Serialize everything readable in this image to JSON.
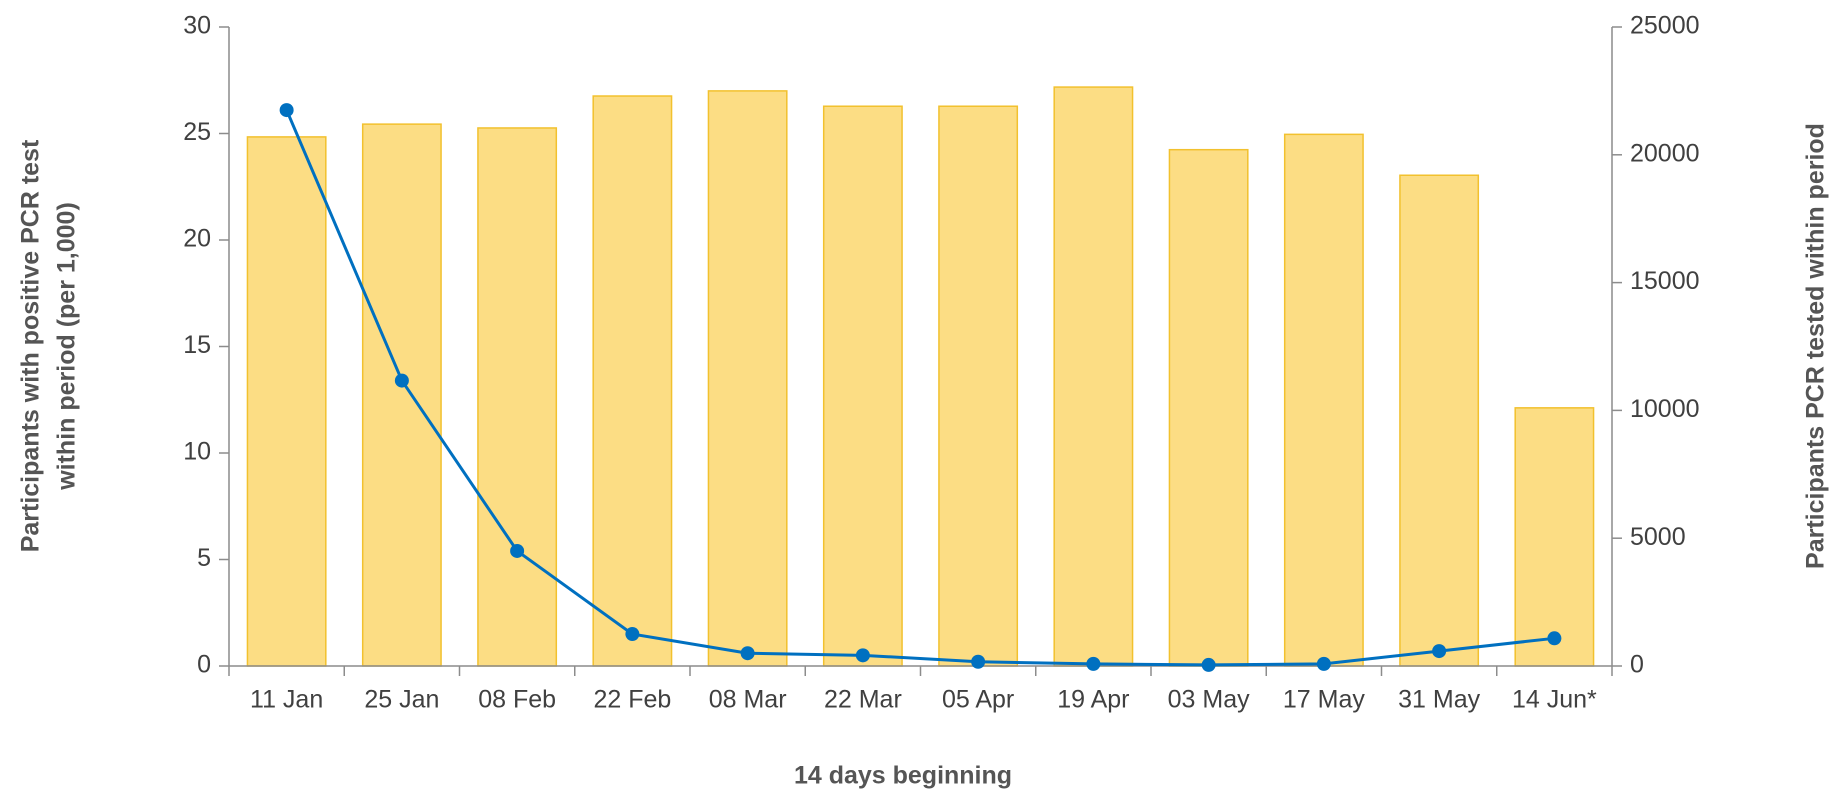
{
  "chart_data": {
    "type": "combo",
    "x_label": "14 days beginning",
    "y_label": [
      "Participants with positive PCR test",
      "within period (per 1,000)"
    ],
    "y2_label": "Participants PCR tested within period",
    "categories": [
      "11 Jan",
      "25 Jan",
      "08 Feb",
      "22 Feb",
      "08 Mar",
      "22 Mar",
      "05 Apr",
      "19 Apr",
      "03 May",
      "17 May",
      "31 May",
      "14 Jun*"
    ],
    "series": [
      {
        "type": "bar",
        "axis": "y2",
        "color": "#fcdd84",
        "stroke": "#f2c12e",
        "values": [
          20700,
          21200,
          21050,
          22300,
          22500,
          21900,
          21900,
          22650,
          20200,
          20800,
          19200,
          10100
        ]
      },
      {
        "type": "line",
        "axis": "y",
        "color": "#0070c0",
        "values": [
          26.1,
          13.4,
          5.4,
          1.5,
          0.6,
          0.5,
          0.2,
          0.1,
          0.05,
          0.1,
          0.7,
          1.3
        ]
      }
    ],
    "ylim": [
      0,
      30
    ],
    "yticks": [
      0,
      5,
      10,
      15,
      20,
      25,
      30
    ],
    "y2lim": [
      0,
      25000
    ],
    "y2ticks": [
      0,
      5000,
      10000,
      15000,
      20000,
      25000
    ],
    "grid": false
  }
}
